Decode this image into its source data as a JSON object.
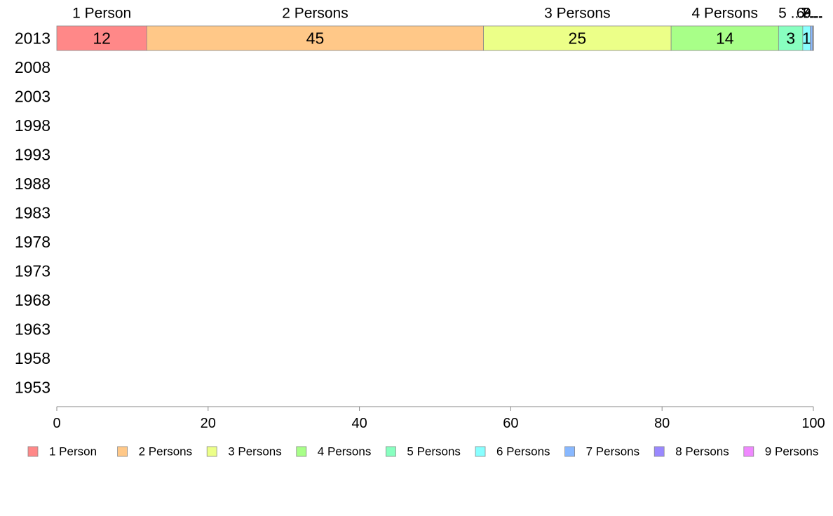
{
  "chart_data": {
    "type": "bar",
    "orientation": "horizontal",
    "stacked": true,
    "categories": [
      "2013",
      "2008",
      "2003",
      "1998",
      "1993",
      "1988",
      "1983",
      "1978",
      "1973",
      "1968",
      "1963",
      "1958",
      "1953"
    ],
    "series": [
      {
        "name": "1 Person",
        "color": "#ff8888",
        "values": [
          11.9,
          null,
          null,
          null,
          null,
          null,
          null,
          null,
          null,
          null,
          null,
          null,
          null
        ]
      },
      {
        "name": "2 Persons",
        "color": "#ffc888",
        "values": [
          44.5,
          null,
          null,
          null,
          null,
          null,
          null,
          null,
          null,
          null,
          null,
          null,
          null
        ]
      },
      {
        "name": "3 Persons",
        "color": "#ecff88",
        "values": [
          24.8,
          null,
          null,
          null,
          null,
          null,
          null,
          null,
          null,
          null,
          null,
          null,
          null
        ]
      },
      {
        "name": "4 Persons",
        "color": "#a8ff88",
        "values": [
          14.2,
          null,
          null,
          null,
          null,
          null,
          null,
          null,
          null,
          null,
          null,
          null,
          null
        ]
      },
      {
        "name": "5 Persons",
        "color": "#88ffc0",
        "values": [
          3.2,
          null,
          null,
          null,
          null,
          null,
          null,
          null,
          null,
          null,
          null,
          null,
          null
        ]
      },
      {
        "name": "6 Persons",
        "color": "#88ffff",
        "values": [
          1.0,
          null,
          null,
          null,
          null,
          null,
          null,
          null,
          null,
          null,
          null,
          null,
          null
        ]
      },
      {
        "name": "7 Persons",
        "color": "#88b8ff",
        "values": [
          0.3,
          null,
          null,
          null,
          null,
          null,
          null,
          null,
          null,
          null,
          null,
          null,
          null
        ]
      },
      {
        "name": "8 Persons",
        "color": "#9a88ff",
        "values": [
          0.05,
          null,
          null,
          null,
          null,
          null,
          null,
          null,
          null,
          null,
          null,
          null,
          null
        ]
      },
      {
        "name": "9 Persons",
        "color": "#f088ff",
        "values": [
          0.05,
          null,
          null,
          null,
          null,
          null,
          null,
          null,
          null,
          null,
          null,
          null,
          null
        ]
      }
    ],
    "segment_labels": [
      "12",
      "45",
      "25",
      "14",
      "3",
      "1",
      "",
      "",
      ""
    ],
    "header_labels": [
      "1 Person",
      "2 Persons",
      "3 Persons",
      "4 Persons",
      "5 ...",
      "6...",
      "7...",
      "8...",
      "9..."
    ],
    "xlim": [
      0,
      100
    ],
    "xticks": [
      "0",
      "20",
      "40",
      "60",
      "80",
      "100"
    ],
    "title": "",
    "xlabel": "",
    "ylabel": "",
    "grid": false,
    "legend": "bottom"
  }
}
